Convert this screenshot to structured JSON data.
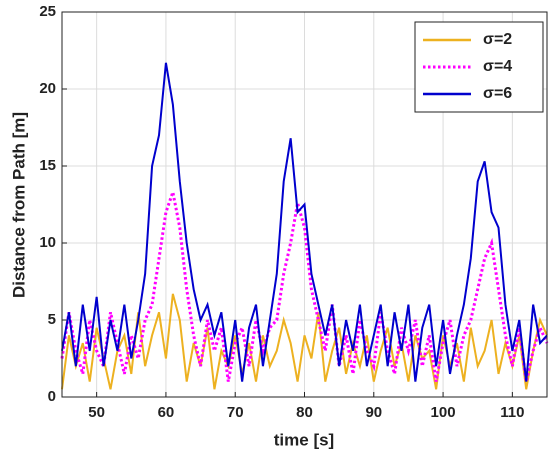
{
  "chart_data": {
    "type": "line",
    "x_label": "time [s]",
    "y_label": "Distance from Path [m]",
    "x": [
      45,
      46,
      47,
      48,
      49,
      50,
      51,
      52,
      53,
      54,
      55,
      56,
      57,
      58,
      59,
      60,
      61,
      62,
      63,
      64,
      65,
      66,
      67,
      68,
      69,
      70,
      71,
      72,
      73,
      74,
      75,
      76,
      77,
      78,
      79,
      80,
      81,
      82,
      83,
      84,
      85,
      86,
      87,
      88,
      89,
      90,
      91,
      92,
      93,
      94,
      95,
      96,
      97,
      98,
      99,
      100,
      101,
      102,
      103,
      104,
      105,
      106,
      107,
      108,
      109,
      110,
      111,
      112,
      113,
      114,
      115
    ],
    "series": [
      {
        "name": "σ=2",
        "color": "#edb120",
        "linestyle": "solid",
        "values": [
          0.5,
          4,
          2,
          3.5,
          1,
          4.5,
          2.5,
          0.5,
          3,
          4,
          1.5,
          5.5,
          2,
          4,
          5.5,
          2.5,
          6.7,
          5,
          1,
          3.5,
          2,
          4.5,
          0.5,
          3,
          2,
          4,
          1.5,
          3.5,
          1,
          4,
          2,
          3,
          5,
          3.5,
          1,
          4,
          2.5,
          5.5,
          1,
          3,
          4.5,
          1.5,
          3.5,
          2,
          4,
          1,
          3,
          4.5,
          2,
          3.5,
          1,
          4,
          2.5,
          3,
          0.5,
          4,
          2,
          3.5,
          1,
          4.5,
          2,
          3,
          5,
          1.5,
          3.5,
          2,
          4,
          0.5,
          3,
          5,
          4
        ]
      },
      {
        "name": "σ=4",
        "color": "#ff00ff",
        "linestyle": "dotted",
        "values": [
          2.5,
          5.5,
          3,
          1.5,
          5,
          3,
          2,
          5.5,
          3.5,
          1.5,
          4,
          2.5,
          5,
          6,
          9,
          12,
          13.3,
          11,
          7,
          4,
          2,
          5,
          3,
          4.5,
          1,
          3.5,
          4.5,
          2,
          5,
          3,
          4.5,
          5,
          8,
          10,
          12.6,
          11,
          7,
          5,
          3,
          6,
          2,
          4,
          1.5,
          5,
          3,
          2,
          5.5,
          3,
          1.5,
          4.5,
          3,
          5,
          2,
          4,
          1,
          3.5,
          5,
          2,
          4,
          5,
          7,
          9,
          10,
          7,
          4,
          2,
          4.5,
          1,
          3,
          4.5,
          3.5
        ]
      },
      {
        "name": "σ=6",
        "color": "#0000cd",
        "linestyle": "solid",
        "values": [
          3,
          5.5,
          2,
          6,
          3,
          6.5,
          2,
          5,
          3,
          6,
          2.5,
          5,
          8,
          15,
          17,
          21.7,
          19,
          14,
          10,
          7,
          5,
          6,
          4,
          5.5,
          2,
          5,
          1,
          4.5,
          6,
          2,
          5,
          8,
          14,
          16.8,
          12,
          12.5,
          8,
          6,
          4,
          6,
          2,
          5,
          3,
          6,
          2,
          4,
          6,
          2,
          5.5,
          3,
          6,
          1,
          4.5,
          6,
          2,
          5,
          1.5,
          4,
          6,
          9,
          14,
          15.3,
          12,
          11,
          6,
          3,
          5,
          1,
          6,
          3.5,
          4
        ]
      }
    ],
    "xlim": [
      45,
      115
    ],
    "ylim": [
      0,
      25
    ],
    "xticks": [
      50,
      60,
      70,
      80,
      90,
      100,
      110
    ],
    "yticks": [
      0,
      5,
      10,
      15,
      20,
      25
    ],
    "grid": true,
    "legend": "northeast"
  }
}
